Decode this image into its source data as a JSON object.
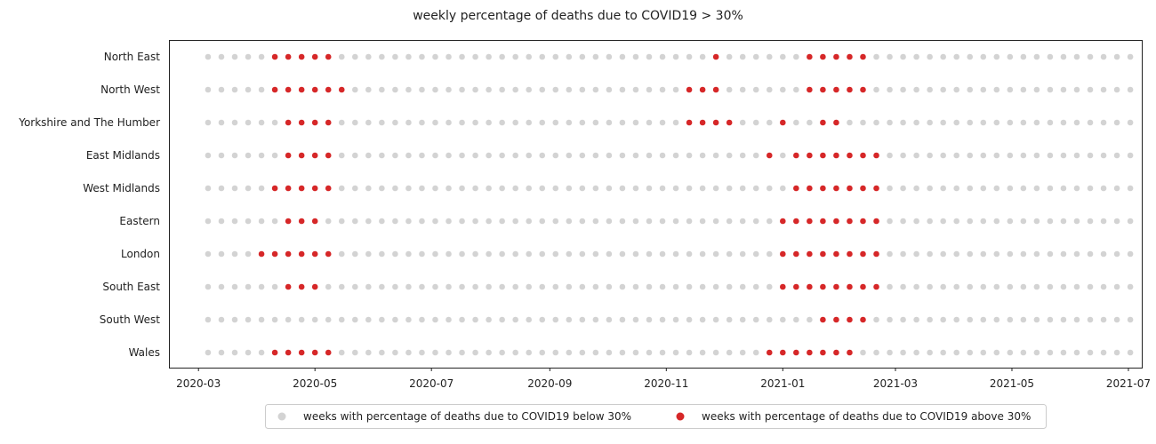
{
  "chart_data": {
    "type": "scatter",
    "title": "weekly percentage of deaths due to COVID19 > 30%",
    "xlabel": "",
    "ylabel": "",
    "x_ticks": [
      "2020-03",
      "2020-05",
      "2020-07",
      "2020-09",
      "2020-11",
      "2021-01",
      "2021-03",
      "2021-05",
      "2021-07"
    ],
    "xlim": [
      "2020-02-15",
      "2021-07-08"
    ],
    "first_week": "2020-03-06",
    "n_weeks": 70,
    "grid": false,
    "legend_position": "bottom-center",
    "colors": {
      "below": "#d3d3d3",
      "above": "#d62728"
    },
    "series": [
      {
        "name": "weeks with percentage of deaths due to COVID19 below 30%",
        "color": "#d3d3d3"
      },
      {
        "name": "weeks with percentage of deaths due to COVID19 above 30%",
        "color": "#d62728"
      }
    ],
    "categories": [
      "North East",
      "North West",
      "Yorkshire and The Humber",
      "East Midlands",
      "West Midlands",
      "Eastern",
      "London",
      "South East",
      "South West",
      "Wales"
    ],
    "above_30_weeks": {
      "North East": [
        "2020-04-10",
        "2020-04-17",
        "2020-04-24",
        "2020-05-01",
        "2020-05-08",
        "2020-11-27",
        "2021-01-15",
        "2021-01-22",
        "2021-01-29",
        "2021-02-05",
        "2021-02-12"
      ],
      "North West": [
        "2020-04-10",
        "2020-04-17",
        "2020-04-24",
        "2020-05-01",
        "2020-05-08",
        "2020-05-15",
        "2020-11-13",
        "2020-11-20",
        "2020-11-27",
        "2021-01-15",
        "2021-01-22",
        "2021-01-29",
        "2021-02-05",
        "2021-02-12"
      ],
      "Yorkshire and The Humber": [
        "2020-04-17",
        "2020-04-24",
        "2020-05-01",
        "2020-05-08",
        "2020-11-13",
        "2020-11-20",
        "2020-11-27",
        "2020-12-04",
        "2021-01-01",
        "2021-01-22",
        "2021-01-29"
      ],
      "East Midlands": [
        "2020-04-17",
        "2020-04-24",
        "2020-05-01",
        "2020-05-08",
        "2020-12-25",
        "2021-01-08",
        "2021-01-15",
        "2021-01-22",
        "2021-01-29",
        "2021-02-05",
        "2021-02-12",
        "2021-02-19"
      ],
      "West Midlands": [
        "2020-04-10",
        "2020-04-17",
        "2020-04-24",
        "2020-05-01",
        "2020-05-08",
        "2021-01-08",
        "2021-01-15",
        "2021-01-22",
        "2021-01-29",
        "2021-02-05",
        "2021-02-12",
        "2021-02-19"
      ],
      "Eastern": [
        "2020-04-17",
        "2020-04-24",
        "2020-05-01",
        "2021-01-01",
        "2021-01-08",
        "2021-01-15",
        "2021-01-22",
        "2021-01-29",
        "2021-02-05",
        "2021-02-12",
        "2021-02-19"
      ],
      "London": [
        "2020-04-03",
        "2020-04-10",
        "2020-04-17",
        "2020-04-24",
        "2020-05-01",
        "2020-05-08",
        "2021-01-01",
        "2021-01-08",
        "2021-01-15",
        "2021-01-22",
        "2021-01-29",
        "2021-02-05",
        "2021-02-12",
        "2021-02-19"
      ],
      "South East": [
        "2020-04-17",
        "2020-04-24",
        "2020-05-01",
        "2021-01-01",
        "2021-01-08",
        "2021-01-15",
        "2021-01-22",
        "2021-01-29",
        "2021-02-05",
        "2021-02-12",
        "2021-02-19"
      ],
      "South West": [
        "2021-01-22",
        "2021-01-29",
        "2021-02-05",
        "2021-02-12"
      ],
      "Wales": [
        "2020-04-10",
        "2020-04-17",
        "2020-04-24",
        "2020-05-01",
        "2020-05-08",
        "2020-12-25",
        "2021-01-01",
        "2021-01-08",
        "2021-01-15",
        "2021-01-22",
        "2021-01-29",
        "2021-02-05"
      ]
    }
  }
}
